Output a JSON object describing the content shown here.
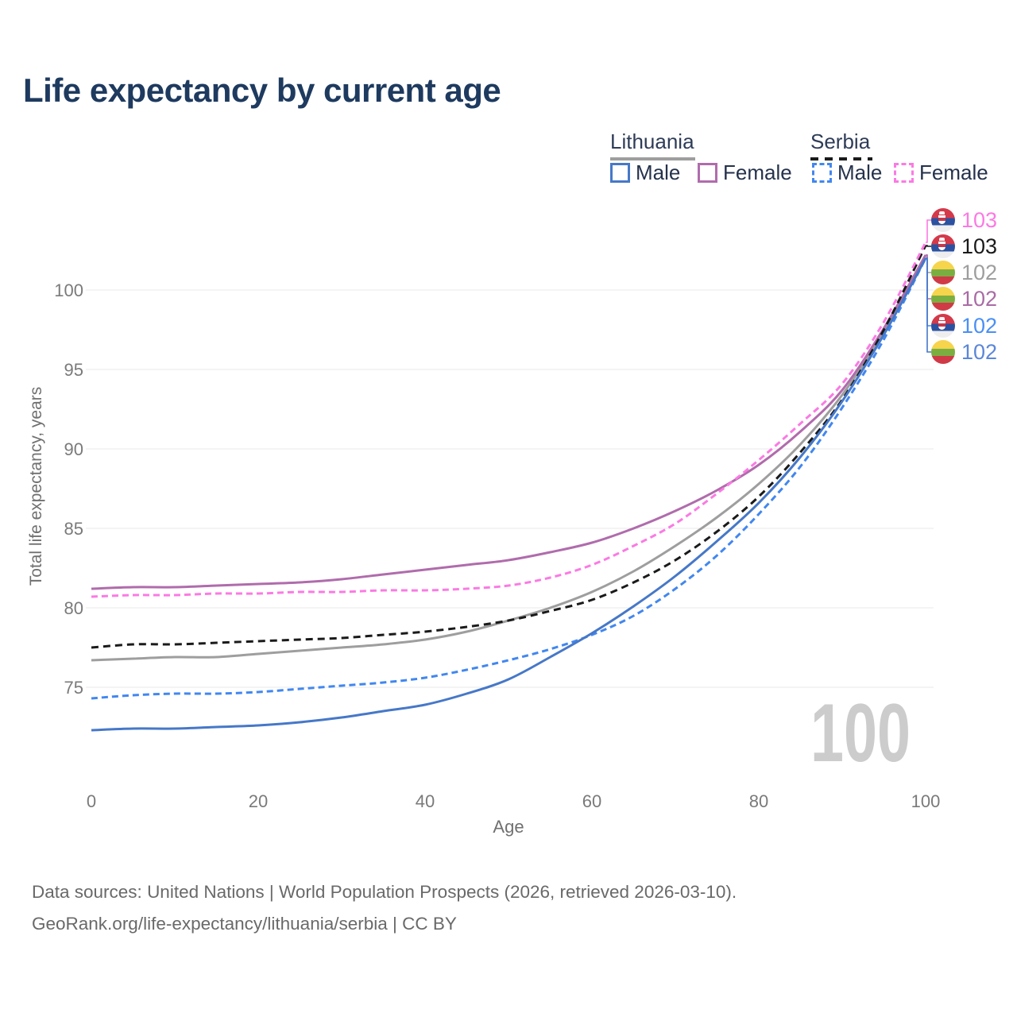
{
  "header": {
    "title": "Life expectancy by current age"
  },
  "legend": {
    "groups": [
      {
        "name": "Lithuania",
        "style": "solid",
        "underline_color": "#9e9e9e",
        "items": [
          {
            "label": "Male",
            "series": "lt-male"
          },
          {
            "label": "Female",
            "series": "lt-female"
          }
        ]
      },
      {
        "name": "Serbia",
        "style": "dashed",
        "underline_color": "#1a1a1a",
        "items": [
          {
            "label": "Male",
            "series": "rs-male"
          },
          {
            "label": "Female",
            "series": "rs-female"
          }
        ]
      }
    ]
  },
  "chart_data": {
    "type": "line",
    "title": "Life expectancy by current age",
    "xlabel": "Age",
    "ylabel": "Total life expectancy, years",
    "xlim": [
      0,
      100
    ],
    "ylim": [
      71.5,
      103.5
    ],
    "xticks": [
      0,
      20,
      40,
      60,
      80,
      100
    ],
    "yticks": [
      75,
      80,
      85,
      90,
      95,
      100
    ],
    "grid": "horizontal-only",
    "gridline_color": "#e8e8e8",
    "tick_color": "#7a7a7a",
    "watermark": "100",
    "watermark_color": "#cccccc",
    "x": [
      0,
      5,
      10,
      15,
      20,
      25,
      30,
      35,
      40,
      45,
      50,
      55,
      60,
      65,
      70,
      75,
      80,
      85,
      90,
      95,
      100
    ],
    "series": [
      {
        "id": "lt-total",
        "name": "Lithuania",
        "country": "lithuania",
        "sex": "total",
        "line": "solid",
        "color": "#9e9e9e",
        "values": [
          76.7,
          76.8,
          76.9,
          76.9,
          77.1,
          77.3,
          77.5,
          77.7,
          78.0,
          78.5,
          79.2,
          80.0,
          81.0,
          82.3,
          83.9,
          85.7,
          87.8,
          90.3,
          93.4,
          97.4,
          102.2
        ],
        "end_label": 102
      },
      {
        "id": "lt-female",
        "name": "Lithuania Female",
        "country": "lithuania",
        "sex": "female",
        "line": "solid",
        "color": "#b06cac",
        "values": [
          81.2,
          81.3,
          81.3,
          81.4,
          81.5,
          81.6,
          81.8,
          82.1,
          82.4,
          82.7,
          83.0,
          83.5,
          84.1,
          85.0,
          86.1,
          87.4,
          89.0,
          91.1,
          93.7,
          97.6,
          102.2
        ],
        "end_label": 102
      },
      {
        "id": "rs-total",
        "name": "Serbia",
        "country": "serbia",
        "sex": "total",
        "line": "dashed",
        "color": "#1a1a1a",
        "values": [
          77.5,
          77.7,
          77.7,
          77.8,
          77.9,
          78.0,
          78.1,
          78.3,
          78.5,
          78.8,
          79.2,
          79.8,
          80.5,
          81.6,
          83.0,
          84.8,
          87.0,
          89.8,
          93.1,
          97.5,
          102.8
        ],
        "end_label": 103
      },
      {
        "id": "rs-female",
        "name": "Serbia Female",
        "country": "serbia",
        "sex": "female",
        "line": "dashed",
        "color": "#fb7ae3",
        "values": [
          80.7,
          80.8,
          80.8,
          80.9,
          80.9,
          81.0,
          81.0,
          81.1,
          81.1,
          81.2,
          81.4,
          81.9,
          82.7,
          83.9,
          85.3,
          87.2,
          89.3,
          91.6,
          94.1,
          98.0,
          103.0
        ],
        "end_label": 103
      },
      {
        "id": "rs-male",
        "name": "Serbia Male",
        "country": "serbia",
        "sex": "male",
        "line": "dashed",
        "color": "#4187f0",
        "values": [
          74.3,
          74.5,
          74.6,
          74.6,
          74.7,
          74.9,
          75.1,
          75.3,
          75.6,
          76.1,
          76.7,
          77.4,
          78.3,
          79.5,
          81.2,
          83.3,
          85.9,
          88.9,
          92.6,
          96.9,
          102.0
        ],
        "end_label": 102
      },
      {
        "id": "lt-male",
        "name": "Lithuania Male",
        "country": "lithuania",
        "sex": "male",
        "line": "solid",
        "color": "#4678c8",
        "values": [
          72.3,
          72.4,
          72.4,
          72.5,
          72.6,
          72.8,
          73.1,
          73.5,
          73.9,
          74.6,
          75.5,
          76.9,
          78.4,
          80.1,
          82.0,
          84.2,
          86.6,
          89.5,
          93.0,
          97.2,
          102.0
        ],
        "end_label": 102
      }
    ]
  },
  "right_labels": [
    {
      "flag": "serbia",
      "value": "103",
      "color": "#fb7ae3",
      "series": "rs-female"
    },
    {
      "flag": "serbia",
      "value": "103",
      "color": "#1a1a1a",
      "series": "rs-total"
    },
    {
      "flag": "lithuania",
      "value": "102",
      "color": "#9e9e9e",
      "series": "lt-total"
    },
    {
      "flag": "lithuania",
      "value": "102",
      "color": "#a96ba5",
      "series": "lt-female"
    },
    {
      "flag": "serbia",
      "value": "102",
      "color": "#4a8ff5",
      "series": "rs-male"
    },
    {
      "flag": "lithuania",
      "value": "102",
      "color": "#5b87d8",
      "series": "lt-male"
    }
  ],
  "footer": {
    "line1": "Data sources: United Nations | World Population Prospects (2026, retrieved 2026-03-10).",
    "line2": "GeoRank.org/life-expectancy/lithuania/serbia | CC BY"
  }
}
